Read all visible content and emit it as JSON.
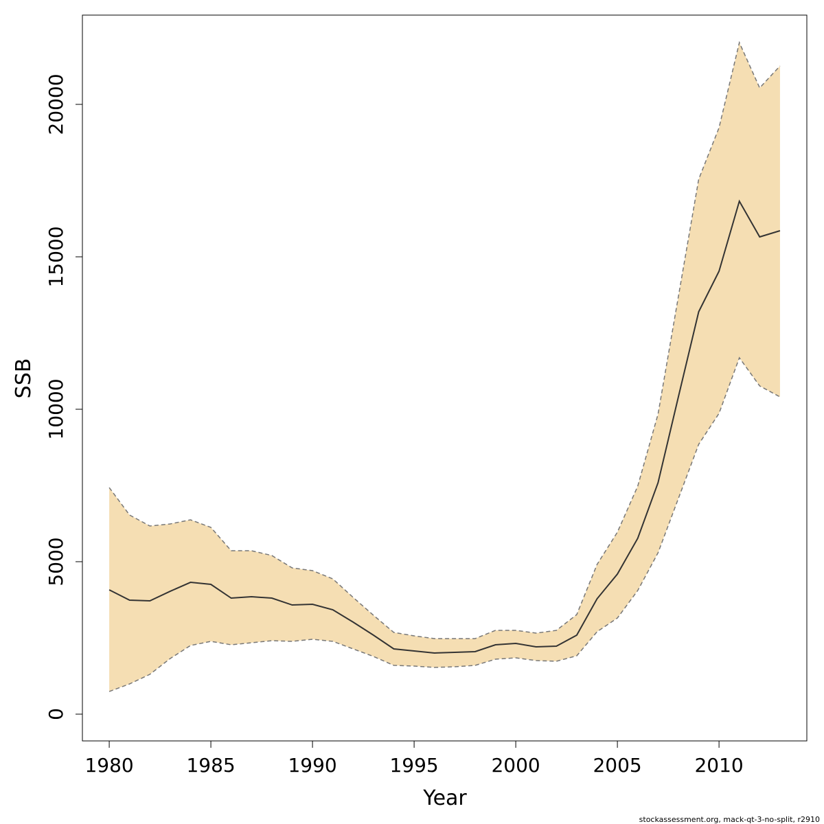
{
  "chart_data": {
    "type": "line",
    "xlabel": "Year",
    "ylabel": "SSB",
    "footer": "stockassessment.org, mack-qt-3-no-split, r2910",
    "x": [
      1980,
      1981,
      1982,
      1983,
      1984,
      1985,
      1986,
      1987,
      1988,
      1989,
      1990,
      1991,
      1992,
      1993,
      1994,
      1995,
      1996,
      1997,
      1998,
      1999,
      2000,
      2001,
      2002,
      2003,
      2004,
      2005,
      2006,
      2007,
      2008,
      2009,
      2010,
      2011,
      2012,
      2013
    ],
    "values": [
      4077,
      3739,
      3716,
      4031,
      4324,
      4257,
      3806,
      3851,
      3806,
      3581,
      3604,
      3423,
      3018,
      2590,
      2140,
      2072,
      2005,
      2027,
      2050,
      2275,
      2320,
      2207,
      2230,
      2590,
      3784,
      4595,
      5766,
      7590,
      10405,
      13198,
      14527,
      16824,
      15653,
      15856
    ],
    "upper": [
      7432,
      6532,
      6171,
      6239,
      6374,
      6126,
      5360,
      5360,
      5203,
      4797,
      4707,
      4437,
      3829,
      3243,
      2680,
      2568,
      2477,
      2477,
      2477,
      2748,
      2748,
      2658,
      2748,
      3266,
      4910,
      5968,
      7477,
      9842,
      13694,
      17545,
      19234,
      22027,
      20541,
      21261
    ],
    "lower": [
      743,
      991,
      1306,
      1824,
      2252,
      2387,
      2275,
      2342,
      2410,
      2387,
      2455,
      2387,
      2140,
      1892,
      1599,
      1577,
      1532,
      1554,
      1599,
      1802,
      1847,
      1757,
      1734,
      1914,
      2703,
      3153,
      4054,
      5293,
      7072,
      8851,
      9865,
      11689,
      10766,
      10405
    ],
    "line_color": "#333333",
    "band_color": "#F5DEB3",
    "band_edge_color": "#777777",
    "xlim": [
      1978.68,
      2014.32
    ],
    "ylim": [
      -878,
      22928
    ],
    "xticks": [
      1980,
      1985,
      1990,
      1995,
      2000,
      2005,
      2010
    ],
    "yticks": [
      0,
      5000,
      10000,
      15000,
      20000
    ]
  }
}
